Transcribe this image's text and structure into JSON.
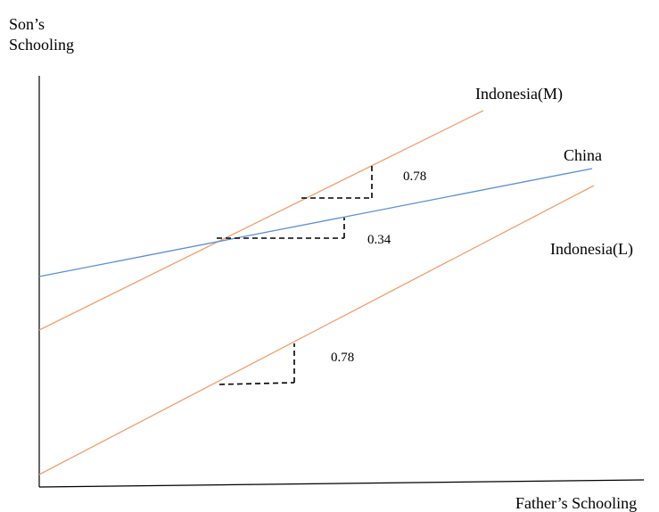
{
  "axes": {
    "y_label_line1": "Son’s",
    "y_label_line2": "Schooling",
    "x_label": "Father’s Schooling",
    "color": "#000000"
  },
  "lines": [
    {
      "name": "Indonesia(M)",
      "color": "#f0a070",
      "slope_label": "0.78"
    },
    {
      "name": "China",
      "color": "#5b8fd4",
      "slope_label": "0.34"
    },
    {
      "name": "Indonesia(L)",
      "color": "#f0a070",
      "slope_label": "0.78"
    }
  ]
}
